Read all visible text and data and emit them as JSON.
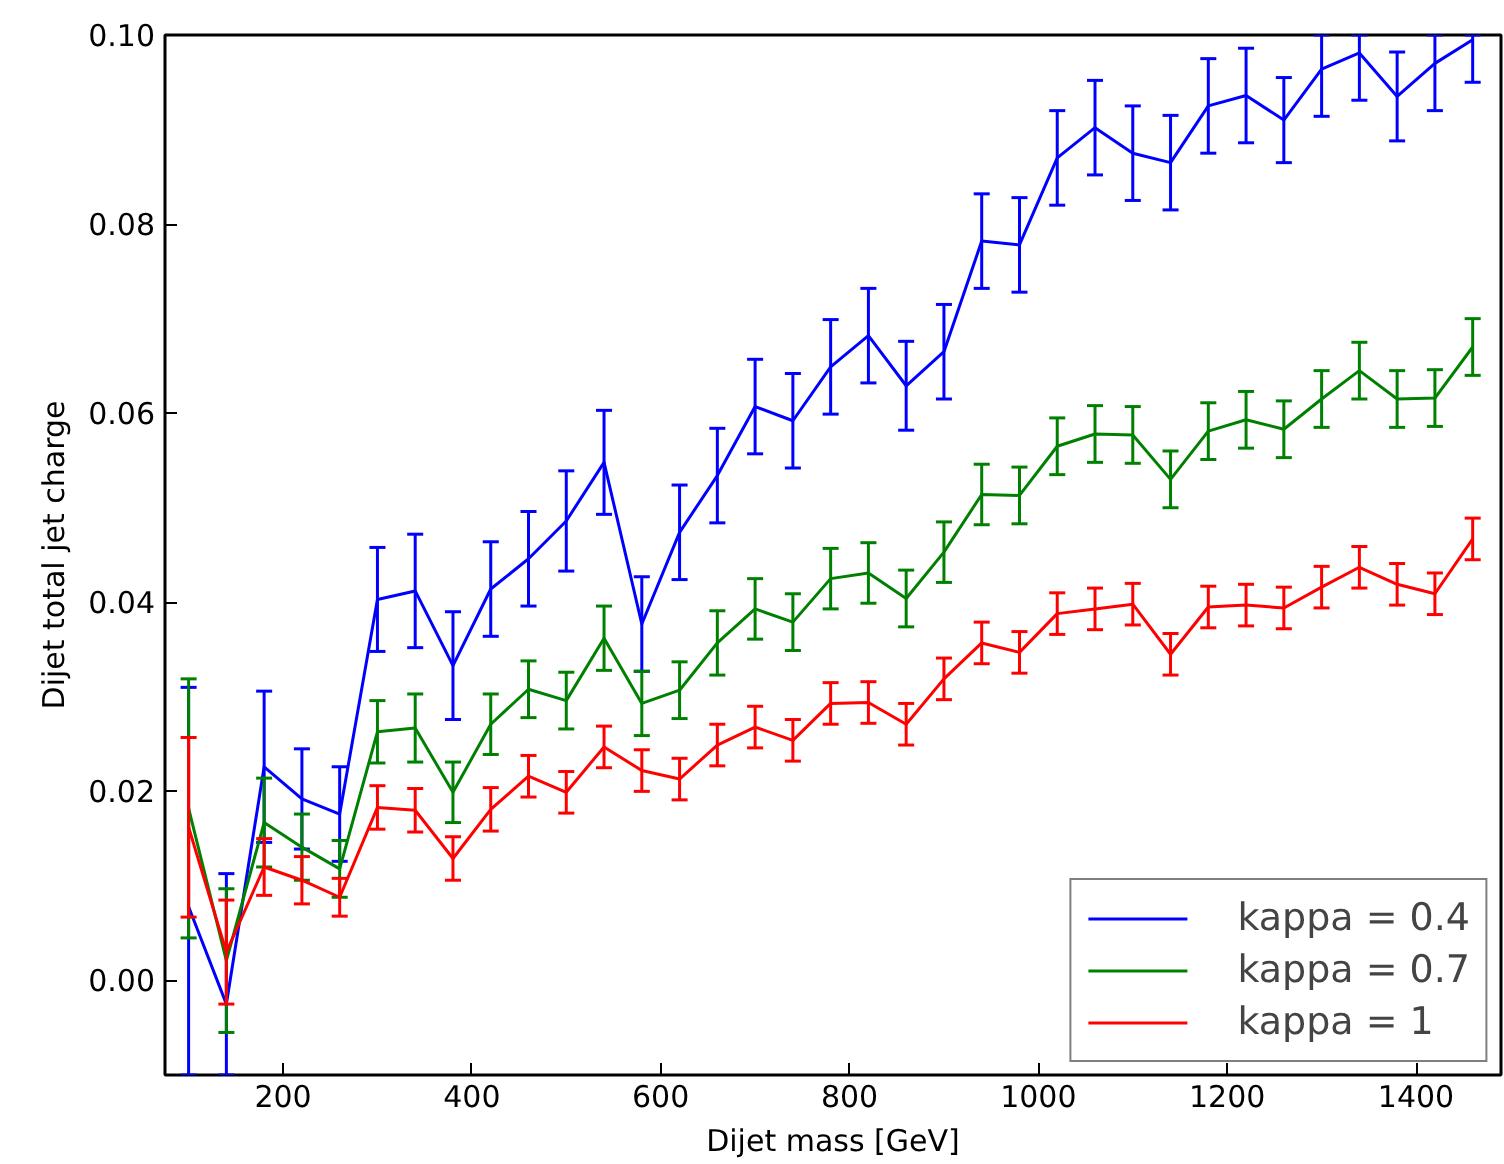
{
  "chart_data": {
    "type": "line",
    "xlabel": "Dijet mass [GeV]",
    "ylabel": "Dijet total jet charge",
    "x": [
      100,
      140,
      180,
      220,
      260,
      300,
      340,
      380,
      420,
      460,
      500,
      540,
      580,
      620,
      660,
      700,
      740,
      780,
      820,
      860,
      900,
      940,
      980,
      1020,
      1060,
      1100,
      1140,
      1180,
      1220,
      1260,
      1300,
      1340,
      1380,
      1420,
      1460
    ],
    "series": [
      {
        "name": "kappa = 0.4",
        "color": "#0000ff",
        "values": [
          0.0078,
          -0.0025,
          0.0226,
          0.0192,
          0.0176,
          0.0403,
          0.0412,
          0.0333,
          0.0414,
          0.0446,
          0.0486,
          0.0548,
          0.0377,
          0.0474,
          0.0534,
          0.0607,
          0.0592,
          0.0649,
          0.0682,
          0.0629,
          0.0665,
          0.0782,
          0.0778,
          0.087,
          0.0902,
          0.0875,
          0.0865,
          0.0925,
          0.0936,
          0.091,
          0.0964,
          0.0981,
          0.0935,
          0.097,
          0.0995
        ],
        "errors": [
          [
            -0.01,
            0.031
          ],
          [
            -0.01,
            0.0113
          ],
          0.008,
          0.0053,
          0.005,
          0.0055,
          0.006,
          0.0057,
          0.005,
          0.005,
          0.0053,
          0.0055,
          0.005,
          0.005,
          0.005,
          0.005,
          0.005,
          0.005,
          0.005,
          0.0047,
          0.005,
          0.005,
          0.005,
          0.005,
          0.005,
          0.005,
          0.005,
          0.005,
          0.005,
          0.0045,
          [
            0.0914,
            0.1
          ],
          [
            0.0931,
            0.1
          ],
          0.0047,
          [
            0.092,
            0.1
          ],
          [
            0.095,
            0.1
          ]
        ]
      },
      {
        "name": "kappa = 0.7",
        "color": "#008000",
        "values": [
          0.0182,
          0.0021,
          0.0167,
          0.0141,
          0.0118,
          0.0263,
          0.0267,
          0.0199,
          0.0271,
          0.0308,
          0.0296,
          0.0362,
          0.0293,
          0.0307,
          0.0357,
          0.0393,
          0.0379,
          0.0425,
          0.0431,
          0.0404,
          0.0453,
          0.0514,
          0.0513,
          0.0565,
          0.0578,
          0.0577,
          0.053,
          0.0581,
          0.0593,
          0.0583,
          0.0615,
          0.0645,
          0.0615,
          0.0616,
          0.067
        ],
        "errors": [
          0.0137,
          0.0076,
          0.0047,
          0.0035,
          0.003,
          0.0033,
          0.0036,
          0.0032,
          0.0032,
          0.003,
          0.003,
          0.0034,
          0.0034,
          0.003,
          0.0034,
          0.0032,
          0.003,
          0.0032,
          0.0032,
          0.003,
          0.0032,
          0.0032,
          0.003,
          0.003,
          0.003,
          0.003,
          0.003,
          0.003,
          0.003,
          0.003,
          0.003,
          0.003,
          0.003,
          0.003,
          0.003
        ]
      },
      {
        "name": "kappa = 1",
        "color": "#ff0000",
        "values": [
          0.0162,
          0.003,
          0.012,
          0.0106,
          0.0088,
          0.0183,
          0.018,
          0.0129,
          0.0181,
          0.0216,
          0.0199,
          0.0247,
          0.0222,
          0.0213,
          0.0249,
          0.0268,
          0.0254,
          0.0293,
          0.0294,
          0.0271,
          0.0319,
          0.0357,
          0.0347,
          0.0388,
          0.0393,
          0.0398,
          0.0345,
          0.0395,
          0.0397,
          0.0394,
          0.0416,
          0.0437,
          0.0419,
          0.0409,
          0.0467
        ],
        "errors": [
          0.0095,
          0.0055,
          0.003,
          0.0025,
          0.002,
          0.0023,
          0.0023,
          0.0023,
          0.0023,
          0.0022,
          0.0022,
          0.0022,
          0.0022,
          0.0022,
          0.0022,
          0.0022,
          0.0022,
          0.0022,
          0.0022,
          0.0022,
          0.0022,
          0.0022,
          0.0022,
          0.0022,
          0.0022,
          0.0022,
          0.0022,
          0.0022,
          0.0022,
          0.0022,
          0.0022,
          0.0022,
          0.0022,
          0.0022,
          0.0022
        ]
      }
    ],
    "xlim": [
      75,
      1490
    ],
    "ylim": [
      -0.01,
      0.1
    ],
    "xticks": [
      200,
      400,
      600,
      800,
      1000,
      1200,
      1400
    ],
    "yticks": [
      {
        "value": 0,
        "label": "0.00"
      },
      {
        "value": 0.02,
        "label": "0.02"
      },
      {
        "value": 0.04,
        "label": "0.04"
      },
      {
        "value": 0.06,
        "label": "0.06"
      },
      {
        "value": 0.08,
        "label": "0.08"
      },
      {
        "value": 0.1,
        "label": "0.10"
      }
    ],
    "grid": false,
    "legend": "bottom right",
    "marker": "none",
    "line_style": "solid"
  }
}
